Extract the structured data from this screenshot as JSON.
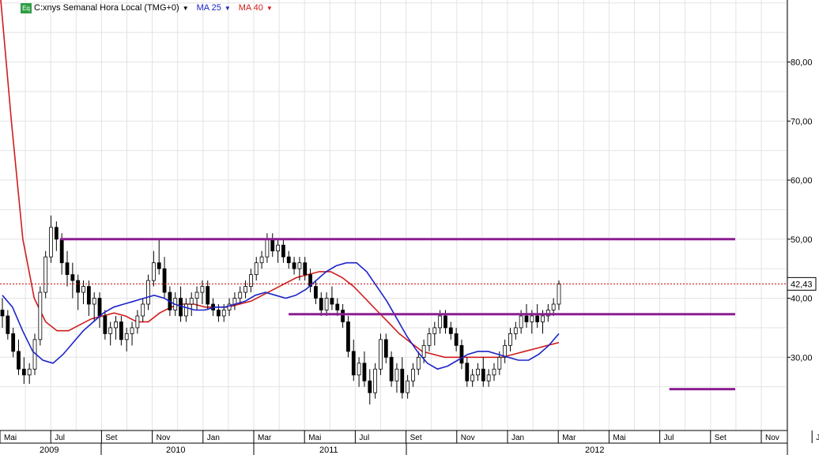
{
  "legend": {
    "badge": "Eq",
    "symbol": "C:xnys Semanal Hora Local (TMG+0)",
    "ma25_label": "MA 25",
    "ma40_label": "MA 40",
    "ma25_color": "#1c24c8",
    "ma40_color": "#d01c1c"
  },
  "chart_data": {
    "type": "candlestick",
    "title": "",
    "xlabel": "",
    "ylabel": "",
    "ylim": [
      17.6,
      90.5
    ],
    "y_ticks": [
      "30,00",
      "40,00",
      "50,00",
      "60,00",
      "70,00",
      "80,00"
    ],
    "y_tick_values": [
      30,
      40,
      50,
      60,
      70,
      80
    ],
    "grid": true,
    "x_month_labels": [
      "Mai",
      "Jul",
      "Set",
      "Nov",
      "Jan",
      "Mar",
      "Mai",
      "Jul",
      "Set",
      "Nov",
      "Jan",
      "Mar",
      "Mai",
      "Jul",
      "Set",
      "Nov",
      "Jan",
      "Mar",
      "Mai",
      "Jul",
      "Set",
      "Nov"
    ],
    "x_year_labels": [
      "2009",
      "2010",
      "2011",
      "2012"
    ],
    "last_price": 42.43,
    "last_price_label": "42,43",
    "support_resistance_lines": [
      {
        "name": "resistance",
        "value": 50.0,
        "from": "2009-06",
        "to": "2012-11",
        "color": "#8b1e92"
      },
      {
        "name": "middle",
        "value": 37.3,
        "from": "2010-03",
        "to": "2011-12",
        "color": "#8b1e92"
      },
      {
        "name": "support",
        "value": 24.6,
        "from": "2011-06",
        "to": "2012-01",
        "color": "#8b1e92"
      }
    ],
    "series": [
      {
        "name": "MA 25",
        "color": "#1c24c8",
        "values": [
          40.5,
          38.5,
          34.5,
          31.0,
          29.5,
          29.0,
          30.5,
          32.5,
          34.5,
          36.0,
          37.5,
          38.5,
          39.0,
          39.5,
          40.0,
          40.5,
          40.0,
          39.0,
          38.5,
          38.0,
          38.0,
          38.5,
          38.5,
          39.0,
          39.5,
          40.5,
          41.0,
          40.5,
          40.0,
          40.5,
          41.5,
          43.0,
          44.5,
          45.5,
          46.0,
          46.0,
          44.5,
          42.0,
          39.5,
          36.5,
          33.5,
          31.0,
          29.0,
          28.0,
          28.5,
          29.5,
          30.5,
          31.0,
          31.0,
          30.5,
          30.0,
          29.5,
          29.5,
          30.5,
          32.0,
          34.0
        ]
      },
      {
        "name": "MA 40",
        "color": "#d01c1c",
        "values": [
          92.0,
          70.0,
          50.0,
          40.0,
          36.0,
          34.5,
          34.5,
          35.5,
          36.5,
          37.0,
          37.5,
          37.0,
          36.0,
          36.0,
          37.5,
          38.5,
          39.0,
          39.0,
          38.5,
          38.5,
          38.5,
          39.0,
          39.5,
          40.5,
          41.5,
          42.5,
          43.5,
          44.0,
          44.5,
          44.5,
          43.5,
          42.0,
          40.0,
          38.0,
          36.0,
          34.0,
          32.5,
          31.0,
          30.5,
          30.0,
          30.0,
          30.0,
          30.0,
          30.0,
          30.0,
          30.5,
          31.0,
          31.5,
          32.0,
          32.5
        ]
      }
    ],
    "ohlc_weekly": [
      [
        38,
        40,
        35,
        37
      ],
      [
        37,
        38,
        33,
        34
      ],
      [
        34,
        35,
        30,
        31
      ],
      [
        31,
        33,
        27,
        28
      ],
      [
        28,
        30,
        25.5,
        27
      ],
      [
        27,
        29,
        25.5,
        28
      ],
      [
        28,
        34,
        27,
        33
      ],
      [
        33,
        42,
        32,
        41
      ],
      [
        41,
        48,
        40,
        47
      ],
      [
        47,
        54,
        46,
        52
      ],
      [
        52,
        53,
        48,
        50
      ],
      [
        50,
        51,
        44,
        46
      ],
      [
        46,
        48,
        42,
        44
      ],
      [
        44,
        46,
        40,
        43
      ],
      [
        43,
        44,
        38,
        41
      ],
      [
        41,
        43,
        39,
        42
      ],
      [
        42,
        43,
        37,
        39
      ],
      [
        39,
        41,
        36,
        40
      ],
      [
        40,
        41,
        35,
        37
      ],
      [
        37,
        38,
        33,
        34
      ],
      [
        34,
        36,
        32,
        35
      ],
      [
        35,
        37,
        33,
        36
      ],
      [
        36,
        37,
        32,
        33
      ],
      [
        33,
        35,
        31,
        34
      ],
      [
        34,
        36,
        32,
        35
      ],
      [
        35,
        38,
        34,
        37
      ],
      [
        37,
        40,
        36,
        39
      ],
      [
        39,
        44,
        38,
        43
      ],
      [
        43,
        48,
        42,
        46
      ],
      [
        46,
        50,
        44,
        45
      ],
      [
        45,
        47,
        40,
        41
      ],
      [
        41,
        42,
        37,
        38
      ],
      [
        38,
        41,
        37,
        40
      ],
      [
        40,
        42,
        36,
        37
      ],
      [
        37,
        40,
        36,
        39
      ],
      [
        39,
        41,
        37,
        40
      ],
      [
        40,
        42,
        38,
        41
      ],
      [
        41,
        43,
        39,
        42
      ],
      [
        42,
        43,
        38,
        39
      ],
      [
        39,
        40,
        37,
        38
      ],
      [
        38,
        39,
        36,
        37
      ],
      [
        37,
        39,
        36,
        38
      ],
      [
        38,
        40,
        37,
        39
      ],
      [
        39,
        41,
        38,
        40
      ],
      [
        40,
        42,
        39,
        41
      ],
      [
        41,
        43,
        40,
        42
      ],
      [
        42,
        45,
        41,
        44
      ],
      [
        44,
        47,
        43,
        46
      ],
      [
        46,
        48,
        45,
        47
      ],
      [
        47,
        51,
        46,
        50
      ],
      [
        50,
        51,
        47,
        48
      ],
      [
        48,
        50,
        46,
        49
      ],
      [
        49,
        50,
        46,
        47
      ],
      [
        47,
        48,
        45,
        46
      ],
      [
        46,
        47,
        44,
        45
      ],
      [
        45,
        47,
        43,
        46
      ],
      [
        46,
        47,
        43,
        44
      ],
      [
        44,
        45,
        41,
        42
      ],
      [
        42,
        43,
        39,
        40
      ],
      [
        40,
        41,
        37,
        38
      ],
      [
        38,
        41,
        37,
        40
      ],
      [
        40,
        42,
        38,
        39
      ],
      [
        39,
        40,
        37,
        38
      ],
      [
        38,
        39,
        35,
        36
      ],
      [
        36,
        37,
        30,
        31
      ],
      [
        31,
        33,
        26,
        27
      ],
      [
        27,
        30,
        25,
        29
      ],
      [
        29,
        31,
        25,
        26
      ],
      [
        26,
        28,
        22,
        24
      ],
      [
        24,
        29,
        23,
        28
      ],
      [
        28,
        34,
        27,
        33
      ],
      [
        33,
        34,
        29,
        30
      ],
      [
        30,
        31,
        25,
        26
      ],
      [
        26,
        29,
        24,
        28
      ],
      [
        28,
        30,
        23,
        24
      ],
      [
        24,
        27,
        23,
        26
      ],
      [
        26,
        29,
        25,
        28
      ],
      [
        28,
        31,
        27,
        30
      ],
      [
        30,
        33,
        29,
        32
      ],
      [
        32,
        35,
        31,
        34
      ],
      [
        34,
        36,
        32,
        35
      ],
      [
        35,
        38,
        34,
        37
      ],
      [
        37,
        38,
        34,
        35
      ],
      [
        35,
        36,
        33,
        34
      ],
      [
        34,
        35,
        31,
        32
      ],
      [
        32,
        33,
        28,
        29
      ],
      [
        29,
        30,
        25,
        26
      ],
      [
        26,
        28,
        25,
        27
      ],
      [
        27,
        29,
        26,
        28
      ],
      [
        28,
        30,
        25,
        26
      ],
      [
        26,
        28,
        25,
        27
      ],
      [
        27,
        29,
        26,
        28
      ],
      [
        28,
        31,
        27,
        30
      ],
      [
        30,
        33,
        29,
        32
      ],
      [
        32,
        35,
        31,
        34
      ],
      [
        34,
        36,
        33,
        35
      ],
      [
        35,
        38,
        34,
        37
      ],
      [
        37,
        39,
        35,
        36
      ],
      [
        36,
        38,
        34,
        37
      ],
      [
        37,
        39,
        35,
        36
      ],
      [
        36,
        38,
        34,
        37
      ],
      [
        37,
        39,
        36,
        38
      ],
      [
        38,
        40,
        37,
        39
      ],
      [
        39,
        43,
        38,
        42.4
      ]
    ]
  }
}
